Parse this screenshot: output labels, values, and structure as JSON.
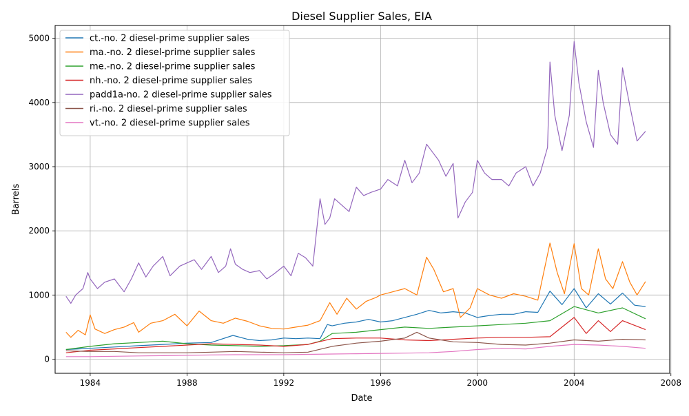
{
  "chart_data": {
    "type": "line",
    "title": "Diesel Supplier Sales, EIA",
    "xlabel": "Date",
    "ylabel": "Barrels",
    "xlim": [
      1982.55,
      2007.95
    ],
    "ylim": [
      -220,
      5200
    ],
    "x_ticks": [
      1984,
      1988,
      1992,
      1996,
      2000,
      2004,
      2008
    ],
    "x_tick_labels": [
      "1984",
      "1988",
      "1992",
      "1996",
      "2000",
      "2004",
      "2008"
    ],
    "y_ticks": [
      0,
      1000,
      2000,
      3000,
      4000,
      5000
    ],
    "y_tick_labels": [
      "0",
      "1000",
      "2000",
      "3000",
      "4000",
      "5000"
    ],
    "grid": true,
    "legend_position": "top-left",
    "series": [
      {
        "name": "ct.-no. 2 diesel-prime supplier sales",
        "color": "#1f77b4",
        "x": [
          1983.0,
          1984.0,
          1985.0,
          1986.0,
          1987.0,
          1988.0,
          1989.0,
          1989.9,
          1990.5,
          1991.0,
          1991.5,
          1992.0,
          1992.5,
          1993.0,
          1993.5,
          1993.8,
          1994.0,
          1994.5,
          1995.0,
          1995.5,
          1996.0,
          1996.5,
          1997.0,
          1997.5,
          1998.0,
          1998.5,
          1999.0,
          1999.5,
          2000.0,
          2000.5,
          2001.0,
          2001.5,
          2002.0,
          2002.5,
          2003.0,
          2003.5,
          2004.0,
          2004.5,
          2005.0,
          2005.5,
          2006.0,
          2006.5,
          2006.95
        ],
        "y": [
          150,
          170,
          190,
          210,
          230,
          250,
          260,
          370,
          310,
          290,
          300,
          330,
          320,
          330,
          320,
          540,
          520,
          560,
          580,
          620,
          580,
          600,
          650,
          700,
          760,
          720,
          740,
          720,
          650,
          680,
          700,
          700,
          740,
          730,
          1060,
          850,
          1100,
          800,
          1020,
          860,
          1030,
          840,
          820
        ]
      },
      {
        "name": "ma.-no. 2 diesel-prime supplier sales",
        "color": "#ff7f0e",
        "x": [
          1983.0,
          1983.2,
          1983.5,
          1983.8,
          1984.0,
          1984.2,
          1984.6,
          1985.0,
          1985.4,
          1985.8,
          1986.0,
          1986.5,
          1987.0,
          1987.5,
          1988.0,
          1988.5,
          1989.0,
          1989.5,
          1990.0,
          1990.5,
          1991.0,
          1991.5,
          1992.0,
          1992.5,
          1993.0,
          1993.5,
          1993.9,
          1994.2,
          1994.6,
          1995.0,
          1995.4,
          1995.8,
          1996.0,
          1996.5,
          1997.0,
          1997.5,
          1997.9,
          1998.2,
          1998.6,
          1999.0,
          1999.3,
          1999.7,
          2000.0,
          2000.5,
          2001.0,
          2001.5,
          2002.0,
          2002.5,
          2003.0,
          2003.3,
          2003.6,
          2004.0,
          2004.3,
          2004.6,
          2005.0,
          2005.3,
          2005.6,
          2006.0,
          2006.3,
          2006.6,
          2006.95
        ],
        "y": [
          420,
          340,
          450,
          380,
          690,
          470,
          400,
          460,
          500,
          570,
          420,
          560,
          600,
          700,
          520,
          750,
          600,
          560,
          640,
          590,
          520,
          480,
          470,
          500,
          530,
          600,
          880,
          700,
          950,
          780,
          900,
          960,
          1000,
          1050,
          1100,
          1000,
          1590,
          1400,
          1050,
          1100,
          650,
          800,
          1100,
          1000,
          950,
          1020,
          980,
          920,
          1810,
          1350,
          1020,
          1800,
          1100,
          1000,
          1720,
          1250,
          1100,
          1520,
          1200,
          1000,
          1210
        ]
      },
      {
        "name": "me.-no. 2 diesel-prime supplier sales",
        "color": "#2ca02c",
        "x": [
          1983.0,
          1984.0,
          1985.0,
          1986.0,
          1987.0,
          1988.0,
          1989.0,
          1990.0,
          1991.0,
          1992.0,
          1993.0,
          1993.5,
          1994.0,
          1995.0,
          1996.0,
          1997.0,
          1998.0,
          1999.0,
          2000.0,
          2001.0,
          2002.0,
          2003.0,
          2004.0,
          2005.0,
          2006.0,
          2006.95
        ],
        "y": [
          150,
          200,
          240,
          260,
          280,
          240,
          220,
          210,
          200,
          210,
          230,
          280,
          400,
          420,
          460,
          500,
          480,
          500,
          520,
          540,
          560,
          600,
          820,
          720,
          800,
          630
        ]
      },
      {
        "name": "nh.-no. 2 diesel-prime supplier sales",
        "color": "#d62728",
        "x": [
          1983.0,
          1984.0,
          1985.0,
          1986.0,
          1987.0,
          1988.0,
          1989.0,
          1990.0,
          1991.0,
          1992.0,
          1993.0,
          1994.0,
          1995.0,
          1996.0,
          1997.0,
          1998.0,
          1999.0,
          2000.0,
          2001.0,
          2002.0,
          2003.0,
          2003.5,
          2004.0,
          2004.5,
          2005.0,
          2005.5,
          2006.0,
          2006.95
        ],
        "y": [
          100,
          140,
          160,
          180,
          200,
          220,
          240,
          230,
          220,
          200,
          230,
          320,
          330,
          330,
          300,
          290,
          310,
          330,
          340,
          340,
          350,
          500,
          650,
          400,
          600,
          430,
          600,
          460
        ]
      },
      {
        "name": "padd1a-no. 2 diesel-prime supplier sales",
        "color": "#9467bd",
        "x": [
          1983.0,
          1983.2,
          1983.4,
          1983.7,
          1983.9,
          1984.0,
          1984.3,
          1984.6,
          1985.0,
          1985.4,
          1985.7,
          1986.0,
          1986.3,
          1986.6,
          1987.0,
          1987.3,
          1987.7,
          1988.0,
          1988.3,
          1988.6,
          1989.0,
          1989.3,
          1989.6,
          1989.8,
          1990.0,
          1990.3,
          1990.6,
          1991.0,
          1991.3,
          1991.6,
          1992.0,
          1992.3,
          1992.6,
          1992.9,
          1993.2,
          1993.5,
          1993.7,
          1993.9,
          1994.1,
          1994.4,
          1994.7,
          1995.0,
          1995.3,
          1995.6,
          1996.0,
          1996.3,
          1996.7,
          1997.0,
          1997.3,
          1997.6,
          1997.9,
          1998.1,
          1998.4,
          1998.7,
          1999.0,
          1999.2,
          1999.5,
          1999.8,
          2000.0,
          2000.3,
          2000.6,
          2001.0,
          2001.3,
          2001.6,
          2002.0,
          2002.3,
          2002.6,
          2002.9,
          2003.0,
          2003.2,
          2003.5,
          2003.8,
          2004.0,
          2004.2,
          2004.5,
          2004.8,
          2005.0,
          2005.2,
          2005.5,
          2005.8,
          2006.0,
          2006.3,
          2006.6,
          2006.95
        ],
        "y": [
          980,
          870,
          1000,
          1100,
          1350,
          1250,
          1100,
          1200,
          1250,
          1050,
          1250,
          1500,
          1280,
          1450,
          1600,
          1300,
          1450,
          1500,
          1550,
          1400,
          1600,
          1350,
          1450,
          1720,
          1480,
          1400,
          1350,
          1380,
          1250,
          1330,
          1450,
          1300,
          1650,
          1580,
          1450,
          2500,
          2100,
          2200,
          2500,
          2400,
          2300,
          2680,
          2550,
          2600,
          2650,
          2800,
          2700,
          3100,
          2750,
          2900,
          3350,
          3250,
          3100,
          2850,
          3050,
          2200,
          2450,
          2600,
          3100,
          2900,
          2800,
          2800,
          2700,
          2900,
          3000,
          2700,
          2900,
          3300,
          4630,
          3800,
          3250,
          3800,
          4950,
          4300,
          3700,
          3300,
          4500,
          4000,
          3500,
          3350,
          4540,
          3950,
          3400,
          3550
        ]
      },
      {
        "name": "ri.-no. 2 diesel-prime supplier sales",
        "color": "#8c564b",
        "x": [
          1983.0,
          1984.0,
          1985.0,
          1986.0,
          1987.0,
          1988.0,
          1989.0,
          1990.0,
          1991.0,
          1992.0,
          1993.0,
          1994.0,
          1995.0,
          1996.0,
          1997.0,
          1997.5,
          1998.0,
          1999.0,
          2000.0,
          2001.0,
          2002.0,
          2003.0,
          2004.0,
          2005.0,
          2006.0,
          2006.95
        ],
        "y": [
          130,
          120,
          120,
          100,
          100,
          100,
          110,
          120,
          110,
          100,
          110,
          200,
          250,
          280,
          330,
          420,
          330,
          270,
          260,
          230,
          220,
          250,
          300,
          280,
          310,
          300
        ]
      },
      {
        "name": "vt.-no. 2 diesel-prime supplier sales",
        "color": "#e377c2",
        "x": [
          1983.0,
          1984.0,
          1985.0,
          1986.0,
          1987.0,
          1988.0,
          1989.0,
          1990.0,
          1991.0,
          1992.0,
          1993.0,
          1994.0,
          1995.0,
          1996.0,
          1997.0,
          1998.0,
          1999.0,
          2000.0,
          2001.0,
          2002.0,
          2003.0,
          2004.0,
          2005.0,
          2006.0,
          2006.95
        ],
        "y": [
          40,
          40,
          45,
          50,
          55,
          60,
          65,
          70,
          70,
          70,
          75,
          80,
          85,
          90,
          95,
          100,
          120,
          150,
          170,
          160,
          200,
          230,
          220,
          200,
          170
        ]
      }
    ]
  }
}
